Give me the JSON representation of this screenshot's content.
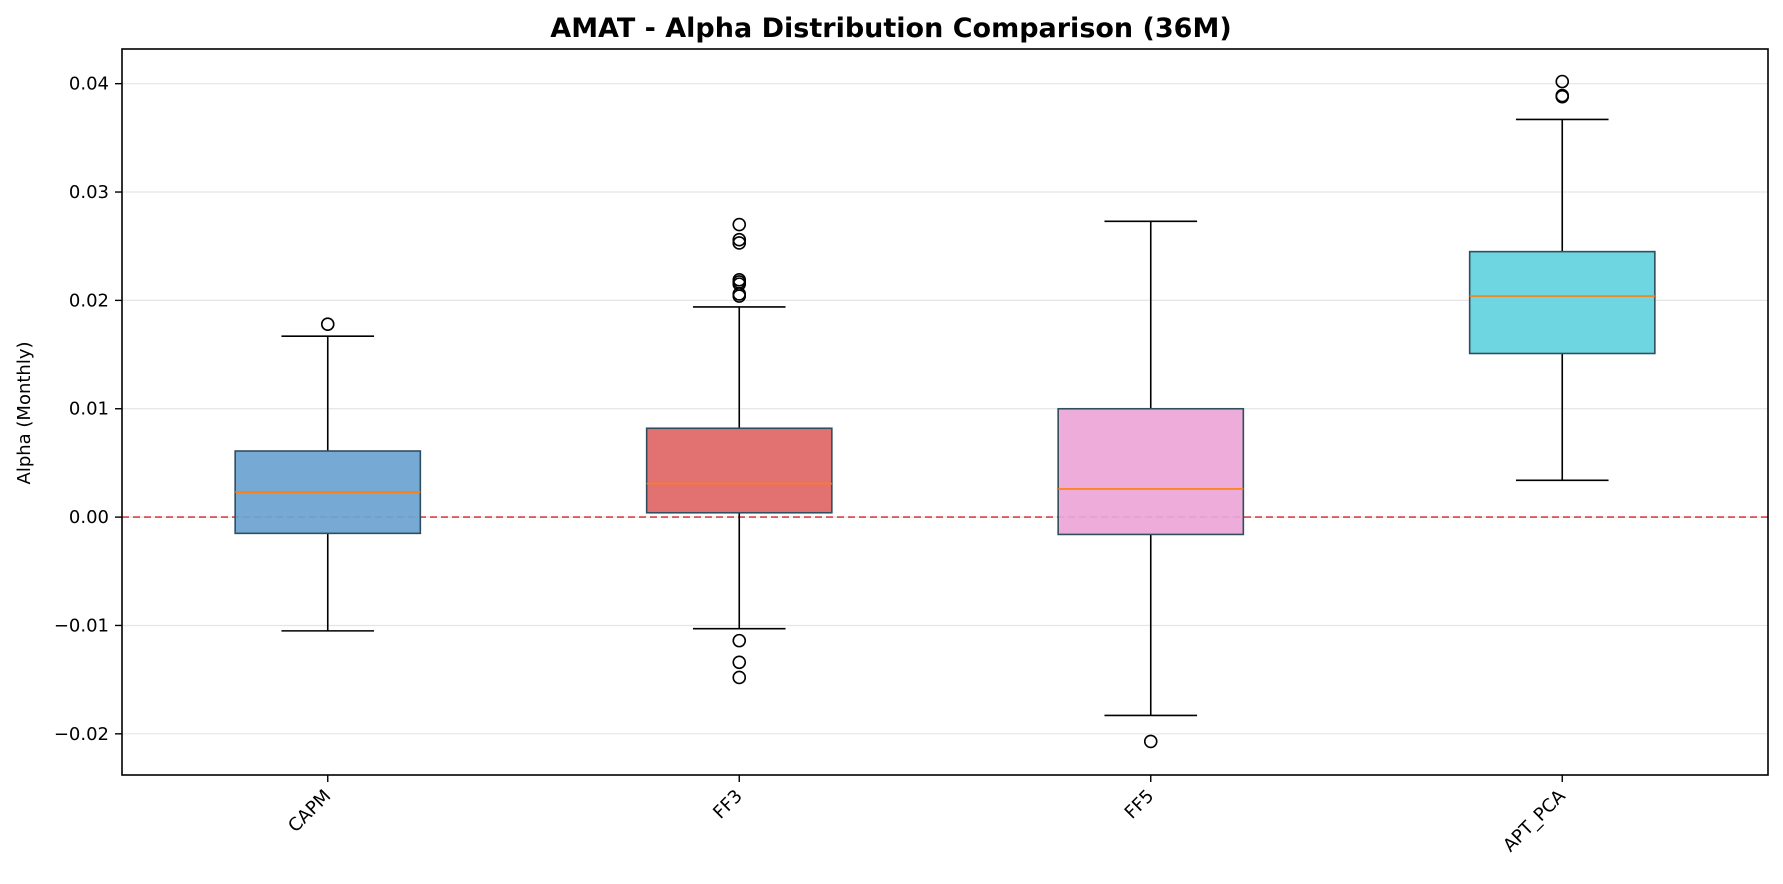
{
  "chart_data": {
    "type": "boxplot",
    "title": "AMAT - Alpha Distribution Comparison (36M)",
    "xlabel": "",
    "ylabel": "Alpha (Monthly)",
    "ylim": [
      -0.0238,
      0.0432
    ],
    "yticks": [
      -0.02,
      -0.01,
      0.0,
      0.01,
      0.02,
      0.03,
      0.04
    ],
    "ytick_labels": [
      "−0.02",
      "−0.01",
      "0.00",
      "0.01",
      "0.02",
      "0.03",
      "0.04"
    ],
    "grid": "y",
    "reference_line": {
      "y": 0.0,
      "color": "#d62728",
      "style": "dashed"
    },
    "categories": [
      "CAPM",
      "FF3",
      "FF5",
      "APT_PCA"
    ],
    "boxes": [
      {
        "name": "CAPM",
        "whisker_low": -0.0105,
        "q1": -0.0015,
        "median": 0.0023,
        "q3": 0.0061,
        "whisker_high": 0.0167,
        "outliers": [
          0.0178
        ],
        "color": "#6aa3d0"
      },
      {
        "name": "FF3",
        "whisker_low": -0.0103,
        "q1": 0.0004,
        "median": 0.0031,
        "q3": 0.0082,
        "whisker_high": 0.0194,
        "outliers": [
          0.027,
          0.0256,
          0.0253,
          0.0219,
          0.0217,
          0.0215,
          0.0206,
          0.0204,
          -0.0114,
          -0.0134,
          -0.0148
        ],
        "color": "#e06666"
      },
      {
        "name": "FF5",
        "whisker_low": -0.0183,
        "q1": -0.0016,
        "median": 0.0026,
        "q3": 0.01,
        "whisker_high": 0.0273,
        "outliers": [
          -0.0207
        ],
        "color": "#eca5d6"
      },
      {
        "name": "APT_PCA",
        "whisker_low": 0.0034,
        "q1": 0.0151,
        "median": 0.0204,
        "q3": 0.0245,
        "whisker_high": 0.0367,
        "outliers": [
          0.0402,
          0.0389,
          0.0388
        ],
        "color": "#62d3de"
      }
    ],
    "median_color": "#ff7f0e",
    "box_edge_color": "#2f4f5f"
  }
}
